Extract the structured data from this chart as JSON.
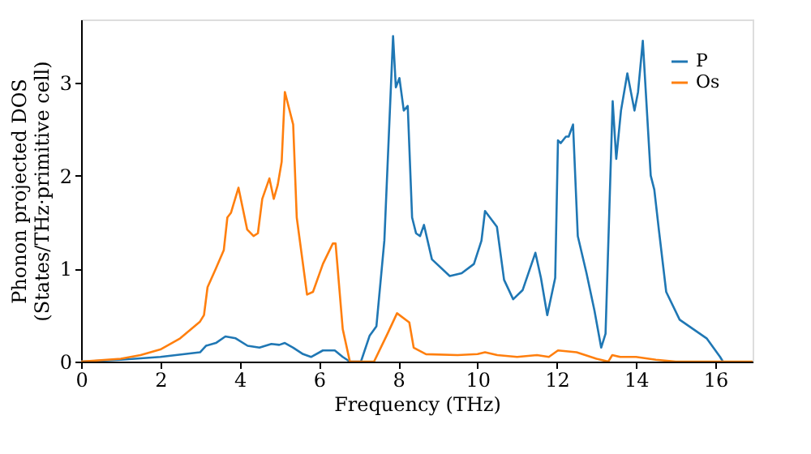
{
  "chart_data": {
    "type": "line",
    "xlabel": "Frequency (THz)",
    "ylabel": "Phonon projected DOS\n(States/THz·primitive cell)",
    "xlim": [
      0,
      16.94
    ],
    "ylim": [
      0,
      3.68
    ],
    "xticks": [
      0,
      2,
      4,
      6,
      8,
      10,
      12,
      14,
      16
    ],
    "yticks": [
      0,
      1,
      2,
      3
    ],
    "grid": false,
    "legend": "top right",
    "line_style": "solid",
    "marker": "none",
    "series": [
      {
        "name": "P",
        "color": "#1f77b4",
        "x": [
          0,
          1,
          2,
          3,
          3.15,
          3.4,
          3.64,
          3.9,
          4.2,
          4.5,
          4.8,
          5.0,
          5.14,
          5.35,
          5.6,
          5.8,
          6.1,
          6.4,
          6.6,
          6.78,
          7.06,
          7.28,
          7.45,
          7.65,
          7.87,
          7.94,
          8.03,
          8.14,
          8.24,
          8.35,
          8.45,
          8.55,
          8.65,
          8.85,
          9.3,
          9.6,
          9.91,
          10.1,
          10.19,
          10.49,
          10.67,
          10.9,
          11.14,
          11.46,
          11.6,
          11.76,
          11.96,
          12.03,
          12.1,
          12.23,
          12.3,
          12.41,
          12.53,
          12.75,
          12.95,
          13.12,
          13.23,
          13.41,
          13.5,
          13.62,
          13.78,
          13.96,
          14.05,
          14.17,
          14.37,
          14.46,
          14.58,
          14.76,
          15.1,
          15.78,
          16.12,
          16.19
        ],
        "values": [
          0,
          0.02,
          0.05,
          0.1,
          0.17,
          0.2,
          0.27,
          0.25,
          0.17,
          0.15,
          0.19,
          0.18,
          0.2,
          0.15,
          0.08,
          0.05,
          0.12,
          0.12,
          0.05,
          0,
          0,
          0.28,
          0.38,
          1.3,
          3.5,
          2.95,
          3.05,
          2.7,
          2.75,
          1.55,
          1.38,
          1.35,
          1.47,
          1.1,
          0.92,
          0.95,
          1.05,
          1.3,
          1.62,
          1.45,
          0.88,
          0.67,
          0.77,
          1.17,
          0.9,
          0.5,
          0.9,
          2.38,
          2.35,
          2.42,
          2.42,
          2.55,
          1.35,
          0.95,
          0.55,
          0.15,
          0.3,
          2.8,
          2.18,
          2.7,
          3.1,
          2.7,
          2.9,
          3.45,
          2.0,
          1.85,
          1.4,
          0.75,
          0.45,
          0.25,
          0.05,
          0
        ]
      },
      {
        "name": "Os",
        "color": "#ff7f0e",
        "x": [
          0,
          1,
          1.5,
          2,
          2.5,
          3.0,
          3.1,
          3.19,
          3.4,
          3.6,
          3.69,
          3.78,
          3.97,
          4.19,
          4.35,
          4.46,
          4.57,
          4.75,
          4.86,
          4.96,
          5.06,
          5.14,
          5.35,
          5.44,
          5.7,
          5.85,
          6.1,
          6.35,
          6.42,
          6.6,
          6.78,
          7.39,
          7.73,
          7.97,
          8.28,
          8.39,
          8.7,
          9.5,
          10.0,
          10.19,
          10.5,
          11.0,
          11.5,
          11.8,
          12.03,
          12.5,
          13.0,
          13.3,
          13.4,
          13.6,
          14.0,
          14.5,
          15.0,
          16.94
        ],
        "values": [
          0,
          0.03,
          0.07,
          0.13,
          0.25,
          0.43,
          0.5,
          0.8,
          1.0,
          1.2,
          1.55,
          1.6,
          1.87,
          1.42,
          1.35,
          1.38,
          1.75,
          1.97,
          1.75,
          1.9,
          2.15,
          2.9,
          2.55,
          1.55,
          0.72,
          0.75,
          1.05,
          1.27,
          1.27,
          0.35,
          0,
          0,
          0.3,
          0.52,
          0.42,
          0.15,
          0.08,
          0.07,
          0.08,
          0.1,
          0.07,
          0.05,
          0.07,
          0.05,
          0.12,
          0.1,
          0.03,
          0,
          0.07,
          0.05,
          0.05,
          0.02,
          0,
          0
        ]
      }
    ]
  }
}
